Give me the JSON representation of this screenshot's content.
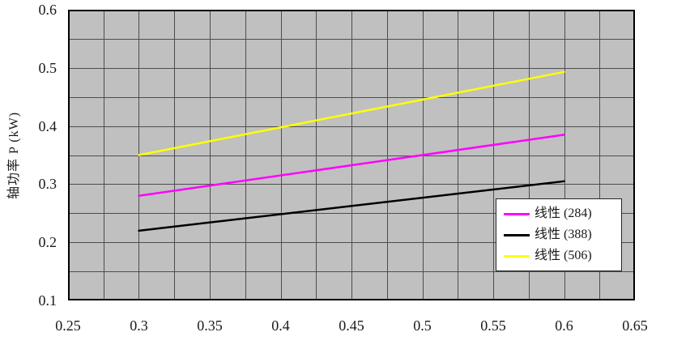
{
  "chart_data": {
    "type": "line",
    "title": "",
    "xlabel": "",
    "ylabel": "轴功率 P (kW)",
    "xlim": [
      0.25,
      0.65
    ],
    "ylim": [
      0.1,
      0.6
    ],
    "x_major_ticks": [
      0.25,
      0.3,
      0.35,
      0.4,
      0.45,
      0.5,
      0.55,
      0.6,
      0.65
    ],
    "x_tick_labels": [
      "0.25",
      "0.3",
      "0.35",
      "0.4",
      "0.45",
      "0.5",
      "0.55",
      "0.6",
      "0.65"
    ],
    "y_major_ticks": [
      0.1,
      0.2,
      0.3,
      0.4,
      0.5,
      0.6
    ],
    "y_tick_labels": [
      "0.1",
      "0.2",
      "0.3",
      "0.4",
      "0.5",
      "0.6"
    ],
    "x_grid_step": 0.025,
    "y_grid_step": 0.05,
    "grid": true,
    "legend_position": "inside-lower-right",
    "colors": {
      "plot_background": "#c0c0c0",
      "grid_line": "#4d4d4d",
      "plot_border": "#000000",
      "text": "#1a1a1a",
      "legend_background": "#ffffff",
      "legend_border": "#262626"
    },
    "series": [
      {
        "name": "线性 (284)",
        "color": "#ff00ff",
        "x": [
          0.3,
          0.6
        ],
        "y": [
          0.28,
          0.385
        ]
      },
      {
        "name": "线性 (388)",
        "color": "#000000",
        "x": [
          0.3,
          0.6
        ],
        "y": [
          0.22,
          0.305
        ]
      },
      {
        "name": "线性 (506)",
        "color": "#ffff00",
        "x": [
          0.3,
          0.6
        ],
        "y": [
          0.35,
          0.493
        ]
      }
    ]
  }
}
